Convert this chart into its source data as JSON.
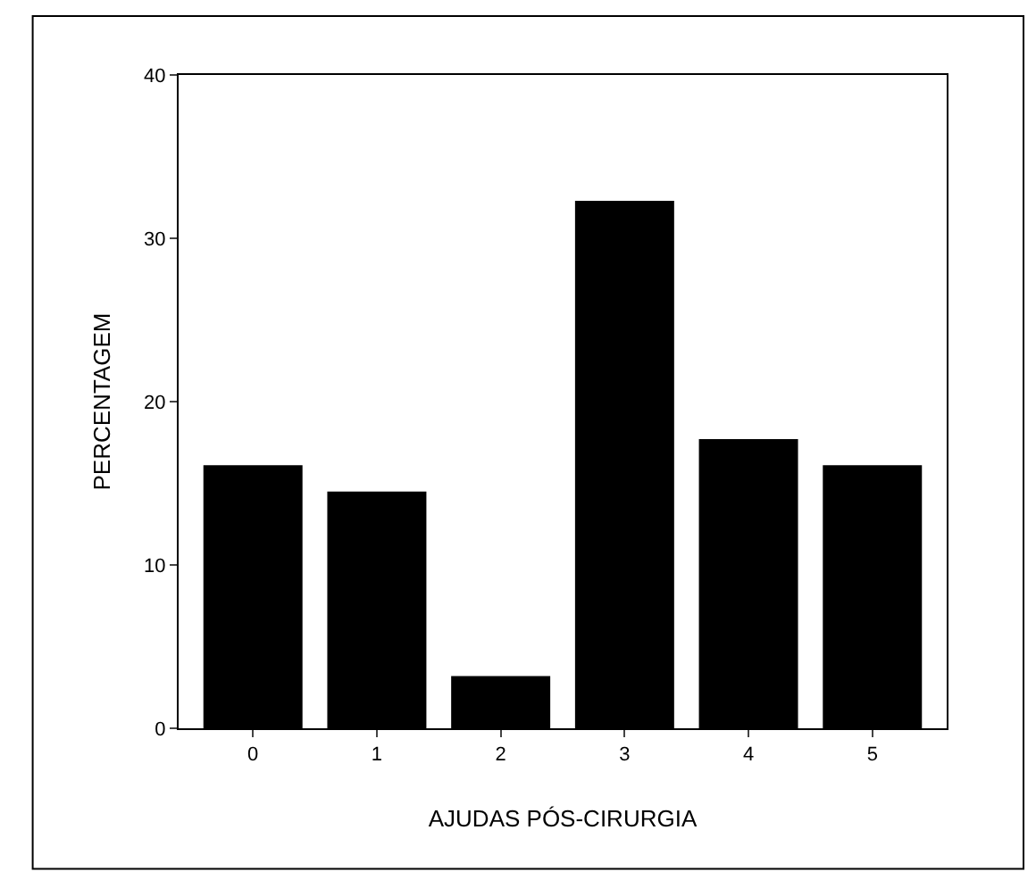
{
  "chart_data": {
    "type": "bar",
    "xlabel": "AJUDAS PÓS-CIRURGIA",
    "ylabel": "PERCENTAGEM",
    "categories": [
      "0",
      "1",
      "2",
      "3",
      "4",
      "5"
    ],
    "values": [
      16.1,
      14.5,
      3.2,
      32.3,
      17.7,
      16.1
    ],
    "color": "#000000",
    "ylim": [
      0,
      40
    ],
    "yticks": [
      0,
      10,
      20,
      30,
      40
    ]
  }
}
